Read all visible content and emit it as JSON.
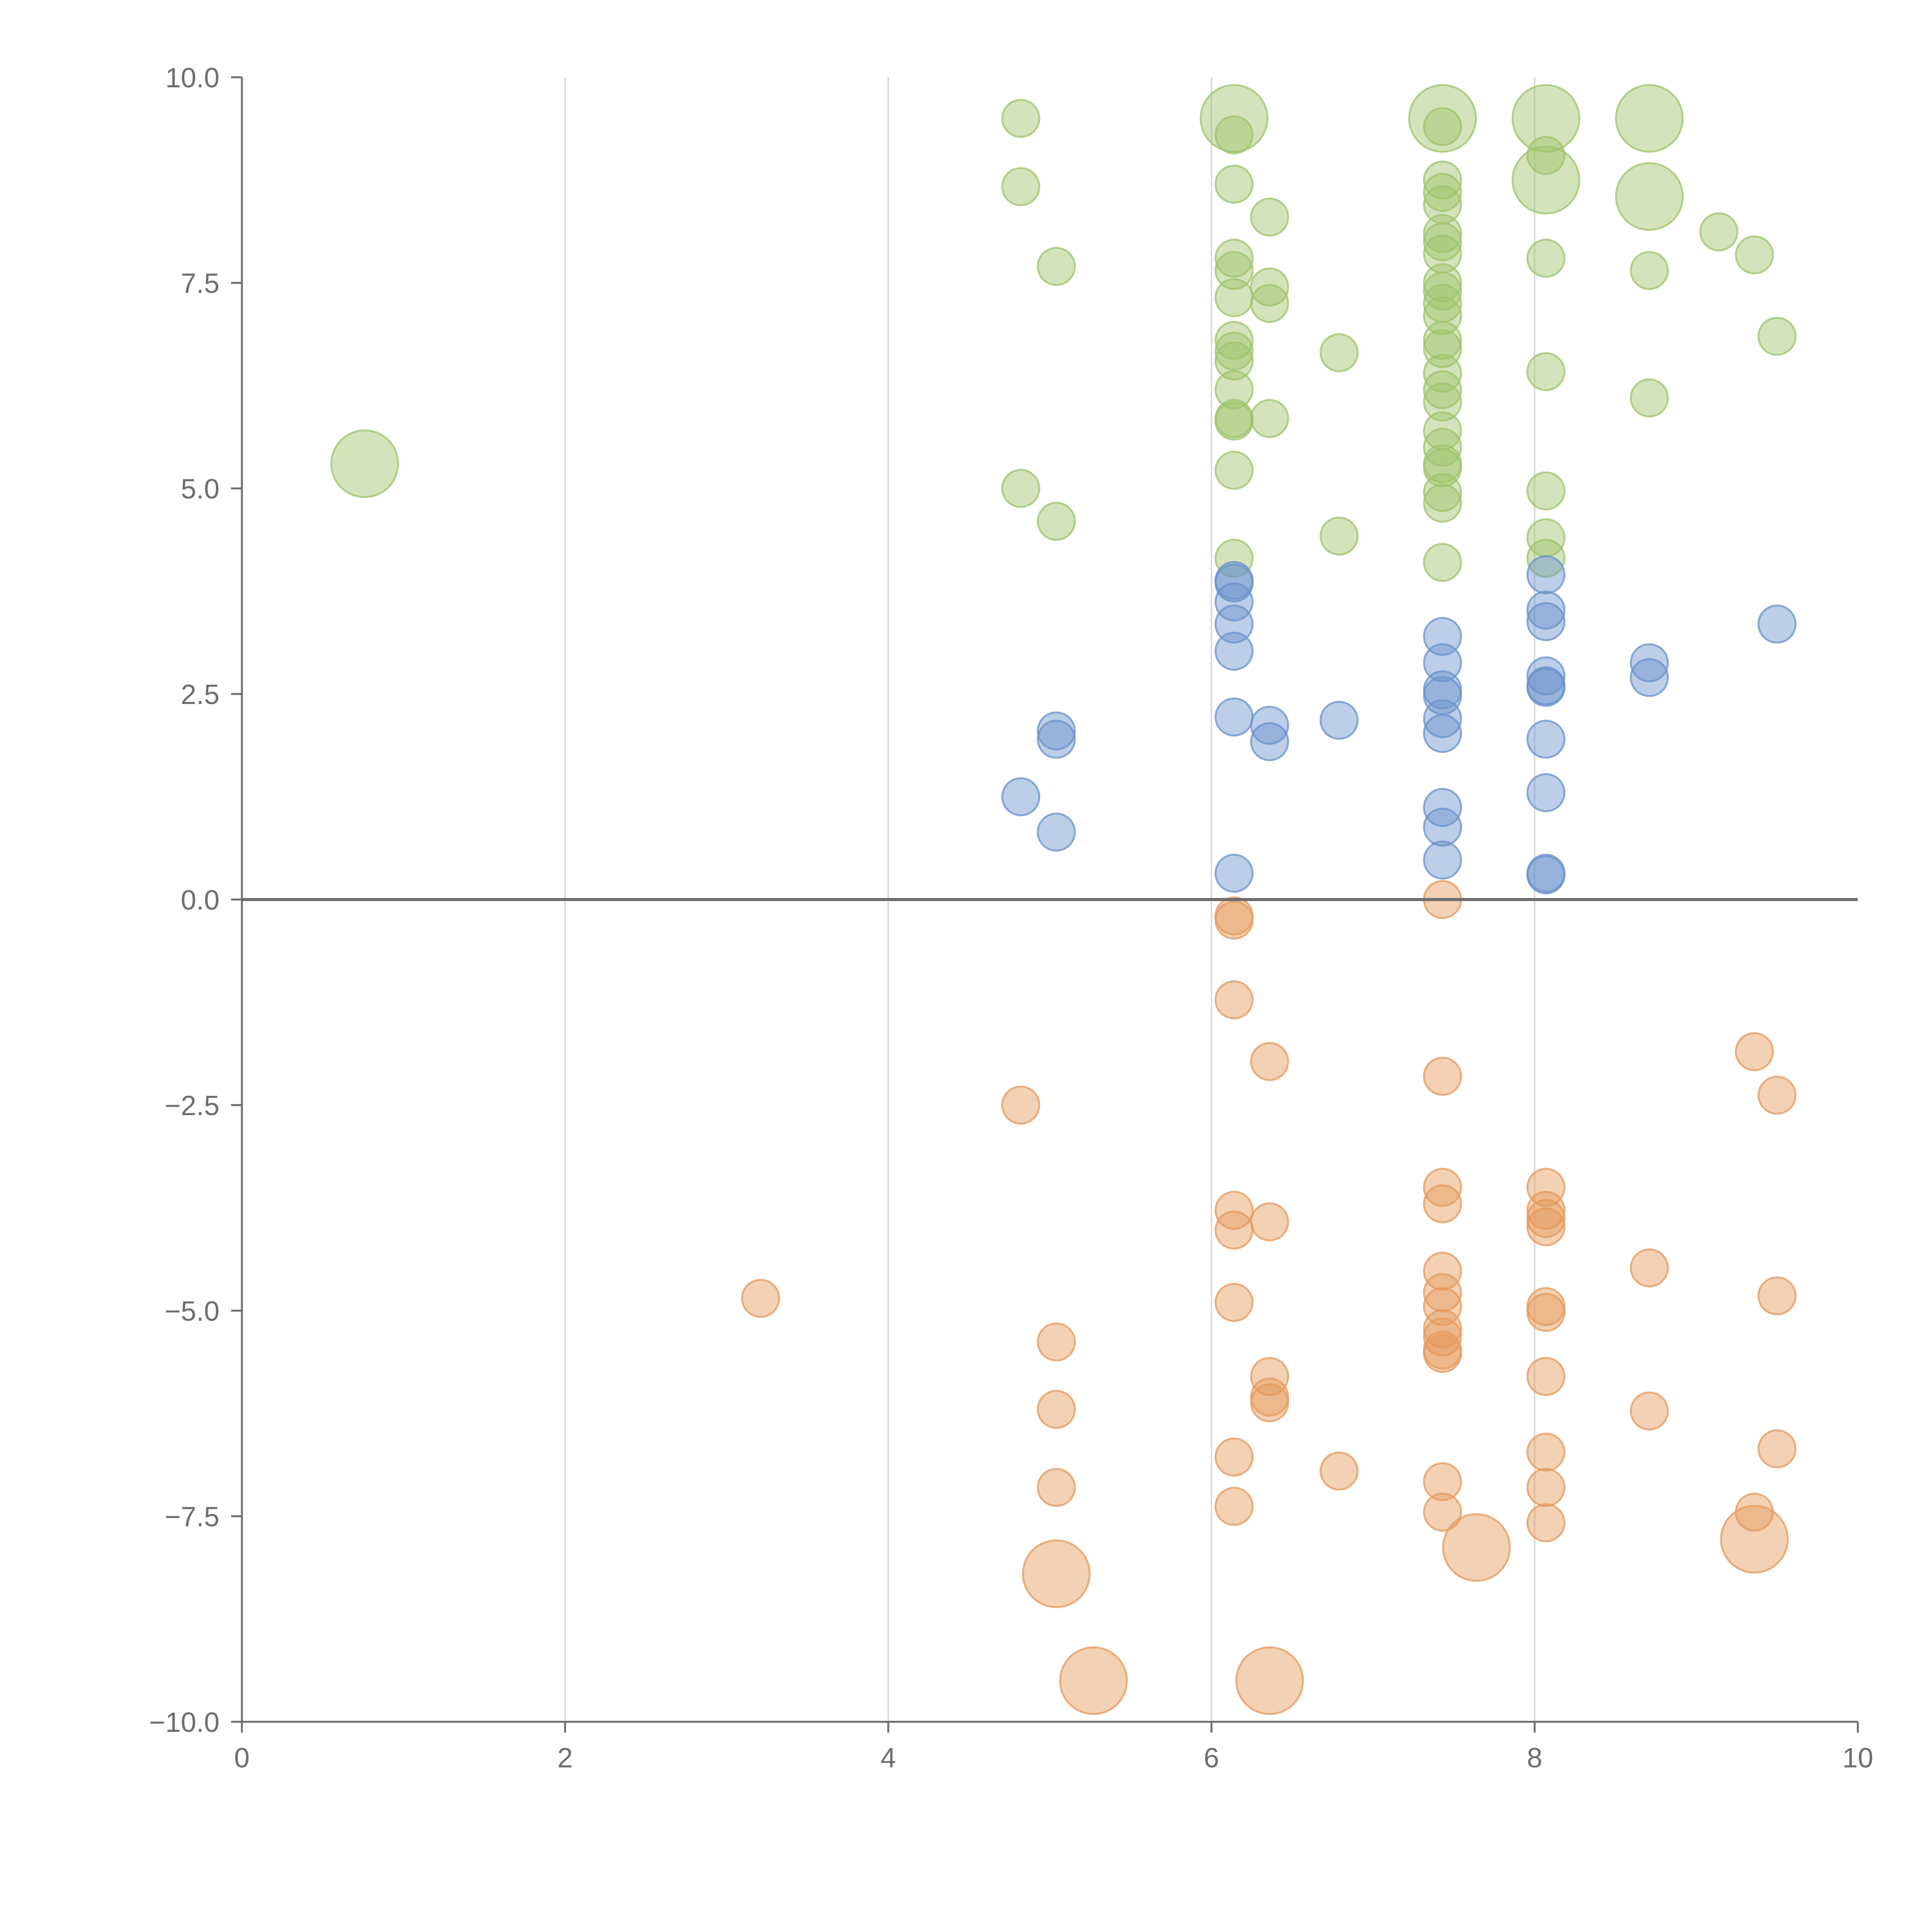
{
  "chart_data": {
    "type": "scatter",
    "title": "",
    "xlabel": "",
    "ylabel": "",
    "xlim": [
      0,
      10
    ],
    "ylim": [
      -10,
      10
    ],
    "x_ticks": [
      "0",
      "2",
      "4",
      "6",
      "8",
      "10"
    ],
    "y_ticks": [
      "10.0",
      "7.5",
      "5.0",
      "2.5",
      "0.0",
      "−2.5",
      "−5.0",
      "−7.5",
      "−10.0"
    ],
    "x_tick_values": [
      0,
      2,
      4,
      6,
      8,
      10
    ],
    "y_tick_values": [
      10,
      7.5,
      5,
      2.5,
      0,
      -2.5,
      -5,
      -7.5,
      -10
    ],
    "vertical_gridlines": [
      2,
      4,
      6,
      8
    ],
    "zero_line": 0,
    "colors": {
      "green": "#9dc46b",
      "blue": "#6a92cc",
      "orange": "#e59a5c",
      "axis": "#6e6e6e",
      "grid": "#d9d9d9",
      "zero": "#6e6e6e"
    },
    "series": [
      {
        "name": "green",
        "points": [
          [
            0.76,
            5.3,
            1.8
          ],
          [
            4.82,
            9.5,
            1
          ],
          [
            4.82,
            8.67,
            1
          ],
          [
            5.04,
            7.7,
            1
          ],
          [
            4.82,
            5.0,
            1
          ],
          [
            5.04,
            4.6,
            1
          ],
          [
            6.14,
            9.5,
            1.8
          ],
          [
            6.14,
            9.3,
            1
          ],
          [
            6.14,
            8.7,
            1
          ],
          [
            6.36,
            8.3,
            1
          ],
          [
            6.14,
            7.8,
            1
          ],
          [
            6.14,
            7.65,
            1
          ],
          [
            6.14,
            7.32,
            1
          ],
          [
            6.36,
            7.45,
            1
          ],
          [
            6.36,
            7.25,
            1
          ],
          [
            6.14,
            6.8,
            1
          ],
          [
            6.14,
            6.67,
            1
          ],
          [
            6.14,
            6.55,
            1
          ],
          [
            6.14,
            6.2,
            1
          ],
          [
            6.14,
            5.85,
            1
          ],
          [
            6.14,
            5.82,
            1
          ],
          [
            6.36,
            5.85,
            1
          ],
          [
            6.14,
            5.22,
            1
          ],
          [
            6.14,
            4.15,
            1
          ],
          [
            6.79,
            6.65,
            1
          ],
          [
            6.79,
            4.42,
            1
          ],
          [
            7.43,
            9.5,
            1.8
          ],
          [
            7.43,
            9.4,
            1
          ],
          [
            7.43,
            8.75,
            1
          ],
          [
            7.43,
            8.6,
            1
          ],
          [
            7.43,
            8.45,
            1
          ],
          [
            7.43,
            8.1,
            1
          ],
          [
            7.43,
            8.0,
            1
          ],
          [
            7.43,
            7.85,
            1
          ],
          [
            7.43,
            7.5,
            1
          ],
          [
            7.43,
            7.4,
            1
          ],
          [
            7.43,
            7.25,
            1
          ],
          [
            7.43,
            7.1,
            1
          ],
          [
            7.43,
            6.8,
            1
          ],
          [
            7.43,
            6.7,
            1
          ],
          [
            7.43,
            6.4,
            1
          ],
          [
            7.43,
            6.2,
            1
          ],
          [
            7.43,
            6.05,
            1
          ],
          [
            7.43,
            5.7,
            1
          ],
          [
            7.43,
            5.5,
            1
          ],
          [
            7.43,
            5.3,
            1
          ],
          [
            7.43,
            5.25,
            1
          ],
          [
            7.43,
            4.95,
            1
          ],
          [
            7.43,
            4.82,
            1
          ],
          [
            7.43,
            4.1,
            1
          ],
          [
            8.07,
            9.5,
            1.8
          ],
          [
            8.07,
            9.05,
            1
          ],
          [
            8.07,
            8.75,
            1.8
          ],
          [
            8.07,
            7.8,
            1
          ],
          [
            8.07,
            6.42,
            1
          ],
          [
            8.07,
            4.97,
            1
          ],
          [
            8.07,
            4.4,
            1
          ],
          [
            8.07,
            4.15,
            1
          ],
          [
            8.71,
            9.5,
            1.8
          ],
          [
            8.71,
            8.55,
            1.8
          ],
          [
            8.71,
            7.65,
            1
          ],
          [
            8.71,
            6.1,
            1
          ],
          [
            9.14,
            8.12,
            1
          ],
          [
            9.36,
            7.84,
            1
          ],
          [
            9.5,
            6.85,
            1
          ]
        ]
      },
      {
        "name": "blue",
        "points": [
          [
            4.82,
            1.25,
            1
          ],
          [
            5.04,
            2.05,
            1
          ],
          [
            5.04,
            1.95,
            1
          ],
          [
            5.04,
            0.82,
            1
          ],
          [
            6.14,
            3.88,
            1
          ],
          [
            6.14,
            3.85,
            1
          ],
          [
            6.14,
            3.62,
            1
          ],
          [
            6.14,
            3.35,
            1
          ],
          [
            6.14,
            3.02,
            1
          ],
          [
            6.14,
            2.22,
            1
          ],
          [
            6.14,
            0.32,
            1
          ],
          [
            6.36,
            2.12,
            1
          ],
          [
            6.36,
            1.92,
            1
          ],
          [
            6.79,
            2.18,
            1
          ],
          [
            7.43,
            3.2,
            1
          ],
          [
            7.43,
            2.88,
            1
          ],
          [
            7.43,
            2.55,
            1
          ],
          [
            7.43,
            2.48,
            1
          ],
          [
            7.43,
            2.2,
            1
          ],
          [
            7.43,
            2.02,
            1
          ],
          [
            7.43,
            1.12,
            1
          ],
          [
            7.43,
            0.88,
            1
          ],
          [
            7.43,
            0.48,
            1
          ],
          [
            8.07,
            3.95,
            1
          ],
          [
            8.07,
            3.52,
            1
          ],
          [
            8.07,
            3.38,
            1
          ],
          [
            8.07,
            2.72,
            1
          ],
          [
            8.07,
            2.6,
            1
          ],
          [
            8.07,
            2.58,
            1
          ],
          [
            8.07,
            1.95,
            1
          ],
          [
            8.07,
            1.3,
            1
          ],
          [
            8.07,
            0.32,
            1
          ],
          [
            8.07,
            0.3,
            1
          ],
          [
            8.71,
            2.88,
            1
          ],
          [
            8.71,
            2.7,
            1
          ],
          [
            9.5,
            3.35,
            1
          ]
        ]
      },
      {
        "name": "orange",
        "points": [
          [
            3.21,
            -4.85,
            1
          ],
          [
            4.82,
            -2.5,
            1
          ],
          [
            5.04,
            -5.38,
            1
          ],
          [
            5.04,
            -6.2,
            1
          ],
          [
            5.04,
            -7.15,
            1
          ],
          [
            5.04,
            -8.2,
            1.8
          ],
          [
            5.27,
            -9.5,
            1.8
          ],
          [
            6.14,
            -0.2,
            1
          ],
          [
            6.14,
            -0.25,
            1
          ],
          [
            6.14,
            -1.22,
            1
          ],
          [
            6.14,
            -3.78,
            1
          ],
          [
            6.14,
            -4.02,
            1
          ],
          [
            6.14,
            -4.9,
            1
          ],
          [
            6.14,
            -6.78,
            1
          ],
          [
            6.14,
            -7.38,
            1
          ],
          [
            6.36,
            -1.97,
            1
          ],
          [
            6.36,
            -3.92,
            1
          ],
          [
            6.36,
            -5.8,
            1
          ],
          [
            6.36,
            -6.05,
            1
          ],
          [
            6.36,
            -6.12,
            1
          ],
          [
            6.36,
            -9.5,
            1.8
          ],
          [
            6.79,
            -6.95,
            1
          ],
          [
            7.43,
            0.0,
            1
          ],
          [
            7.43,
            -2.15,
            1
          ],
          [
            7.43,
            -3.5,
            1
          ],
          [
            7.43,
            -3.7,
            1
          ],
          [
            7.43,
            -4.52,
            1
          ],
          [
            7.43,
            -4.78,
            1
          ],
          [
            7.43,
            -4.95,
            1
          ],
          [
            7.43,
            -5.22,
            1
          ],
          [
            7.43,
            -5.32,
            1
          ],
          [
            7.43,
            -5.48,
            1
          ],
          [
            7.43,
            -5.52,
            1
          ],
          [
            7.43,
            -7.08,
            1
          ],
          [
            7.43,
            -7.45,
            1
          ],
          [
            7.64,
            -7.88,
            1.8
          ],
          [
            8.07,
            -3.5,
            1
          ],
          [
            8.07,
            -3.78,
            1
          ],
          [
            8.07,
            -3.88,
            1
          ],
          [
            8.07,
            -3.98,
            1
          ],
          [
            8.07,
            -4.95,
            1
          ],
          [
            8.07,
            -5.02,
            1
          ],
          [
            8.07,
            -5.8,
            1
          ],
          [
            8.07,
            -6.72,
            1
          ],
          [
            8.07,
            -7.15,
            1
          ],
          [
            8.07,
            -7.58,
            1
          ],
          [
            8.71,
            -4.48,
            1
          ],
          [
            8.71,
            -6.22,
            1
          ],
          [
            9.36,
            -1.85,
            1
          ],
          [
            9.36,
            -7.45,
            1
          ],
          [
            9.36,
            -7.78,
            1.8
          ],
          [
            9.5,
            -2.38,
            1
          ],
          [
            9.5,
            -4.82,
            1
          ],
          [
            9.5,
            -6.68,
            1
          ]
        ]
      }
    ]
  }
}
